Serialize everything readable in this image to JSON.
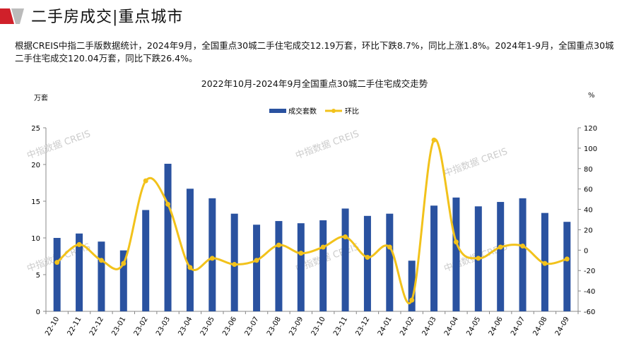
{
  "header": {
    "title": "二手房成交|重点城市"
  },
  "description": "根据CREIS中指二手版数据统计，2024年9月，全国重点30城二手住宅成交12.19万套，环比下跌8.7%，同比上涨1.8%。2024年1-9月，全国重点30城二手住宅成交120.04万套，同比下跌26.4%。",
  "watermark": "中指数据 CREIS",
  "colors": {
    "bar": "#2a52a0",
    "line": "#f2c21b",
    "brand": "#d0202a"
  },
  "chart_data": {
    "type": "bar+line",
    "title": "2022年10月-2024年9月全国重点30城二手住宅成交走势",
    "ylabel_left": "万套",
    "ylabel_right": "%",
    "ylim_left": [
      0,
      25
    ],
    "yticks_left": [
      0,
      5,
      10,
      15,
      20,
      25
    ],
    "ylim_right": [
      -60,
      120
    ],
    "yticks_right": [
      -60,
      -40,
      -20,
      0,
      20,
      40,
      60,
      80,
      100,
      120
    ],
    "legend_position": "top-center",
    "grid": false,
    "categories": [
      "22-10",
      "22-11",
      "22-12",
      "23-01",
      "23-02",
      "23-03",
      "23-04",
      "23-05",
      "23-06",
      "23-07",
      "23-08",
      "23-09",
      "23-10",
      "23-11",
      "23-12",
      "24-01",
      "24-02",
      "24-03",
      "24-04",
      "24-05",
      "24-06",
      "24-07",
      "24-08",
      "24-09"
    ],
    "series": [
      {
        "name": "成交套数",
        "type": "bar",
        "axis": "left",
        "values": [
          10.0,
          10.6,
          9.5,
          8.3,
          13.8,
          20.1,
          16.7,
          15.4,
          13.3,
          11.8,
          12.3,
          12.0,
          12.4,
          14.0,
          13.0,
          13.3,
          6.9,
          14.4,
          15.5,
          14.3,
          14.9,
          15.4,
          13.4,
          12.19
        ]
      },
      {
        "name": "环比",
        "type": "line",
        "axis": "right",
        "values": [
          -12,
          5.5,
          -10,
          -13,
          68,
          45,
          -17,
          -8,
          -14,
          -10,
          5,
          -3,
          3,
          13,
          -7,
          3,
          -49,
          108,
          8,
          -8,
          3,
          4,
          -13,
          -8.7
        ]
      }
    ]
  }
}
